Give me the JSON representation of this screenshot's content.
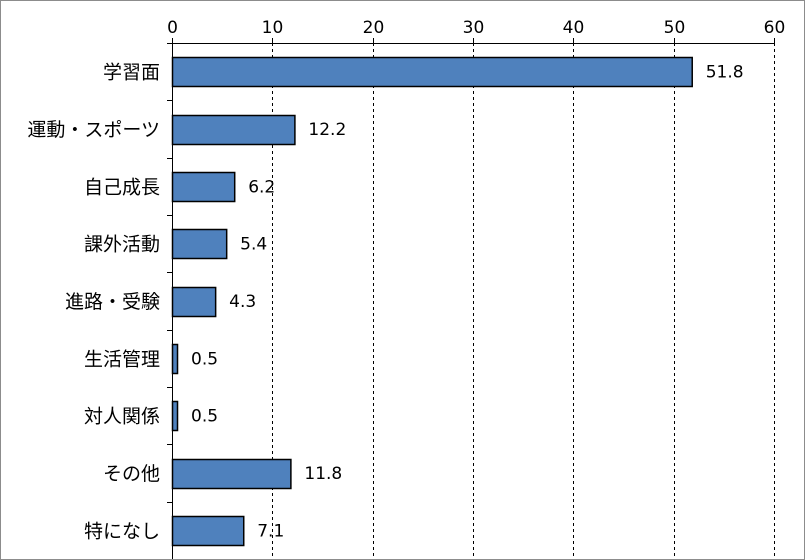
{
  "chart_data": {
    "type": "bar",
    "orientation": "horizontal",
    "categories": [
      "学習面",
      "運動・スポーツ",
      "自己成長",
      "課外活動",
      "進路・受験",
      "生活管理",
      "対人関係",
      "その他",
      "特になし"
    ],
    "values": [
      51.8,
      12.2,
      6.2,
      5.4,
      4.3,
      0.5,
      0.5,
      11.8,
      7.1
    ],
    "data_labels": [
      "51.8",
      "12.2",
      "6.2",
      "5.4",
      "4.3",
      "0.5",
      "0.5",
      "11.8",
      "7.1"
    ],
    "xlim": [
      0,
      60
    ],
    "xticks": [
      0,
      10,
      20,
      30,
      40,
      50,
      60
    ],
    "xtick_labels": [
      "0",
      "10",
      "20",
      "30",
      "40",
      "50",
      "60"
    ],
    "x_axis_position": "top",
    "grid": "vertical-dashed",
    "legend": "none",
    "colors": {
      "bar_fill": "#4f81bd",
      "bar_stroke": "#000000",
      "grid": "#000000",
      "axis": "#000000"
    }
  }
}
